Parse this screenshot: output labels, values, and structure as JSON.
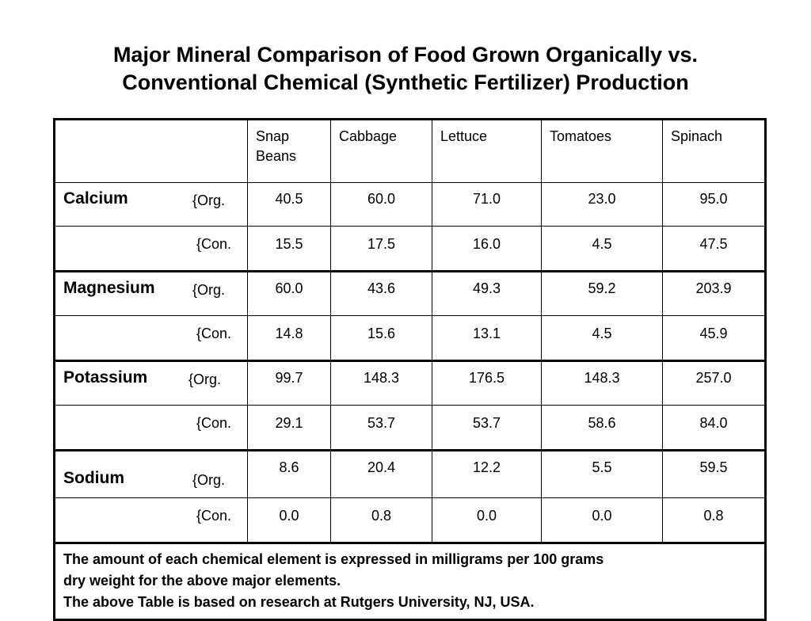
{
  "title": {
    "line1": "Major Mineral Comparison of Food Grown Organically vs.",
    "line2": "Conventional Chemical (Synthetic Fertilizer) Production"
  },
  "columns": [
    "Snap Beans",
    "Cabbage",
    "Lettuce",
    "Tomatoes",
    "Spinach"
  ],
  "column_lines": {
    "snap1": "Snap",
    "snap2": "Beans"
  },
  "org_label": "{Org.",
  "con_label": "{Con.",
  "minerals": [
    {
      "name": "Calcium",
      "org": [
        "40.5",
        "60.0",
        "71.0",
        "23.0",
        "95.0"
      ],
      "con": [
        "15.5",
        "17.5",
        "16.0",
        "4.5",
        "47.5"
      ]
    },
    {
      "name": "Magnesium",
      "org": [
        "60.0",
        "43.6",
        "49.3",
        "59.2",
        "203.9"
      ],
      "con": [
        "14.8",
        "15.6",
        "13.1",
        "4.5",
        "45.9"
      ]
    },
    {
      "name": "Potassium",
      "org": [
        "99.7",
        "148.3",
        "176.5",
        "148.3",
        "257.0"
      ],
      "con": [
        "29.1",
        "53.7",
        "53.7",
        "58.6",
        "84.0"
      ]
    },
    {
      "name": "Sodium",
      "org": [
        "8.6",
        "20.4",
        "12.2",
        "5.5",
        "59.5"
      ],
      "con": [
        "0.0",
        "0.8",
        "0.0",
        "0.0",
        "0.8"
      ]
    }
  ],
  "notes": {
    "line1": "The amount of each chemical element is expressed in milligrams per 100 grams",
    "line2": "dry weight for the above major elements.",
    "line3": "The above Table is based on research at Rutgers University, NJ, USA."
  }
}
